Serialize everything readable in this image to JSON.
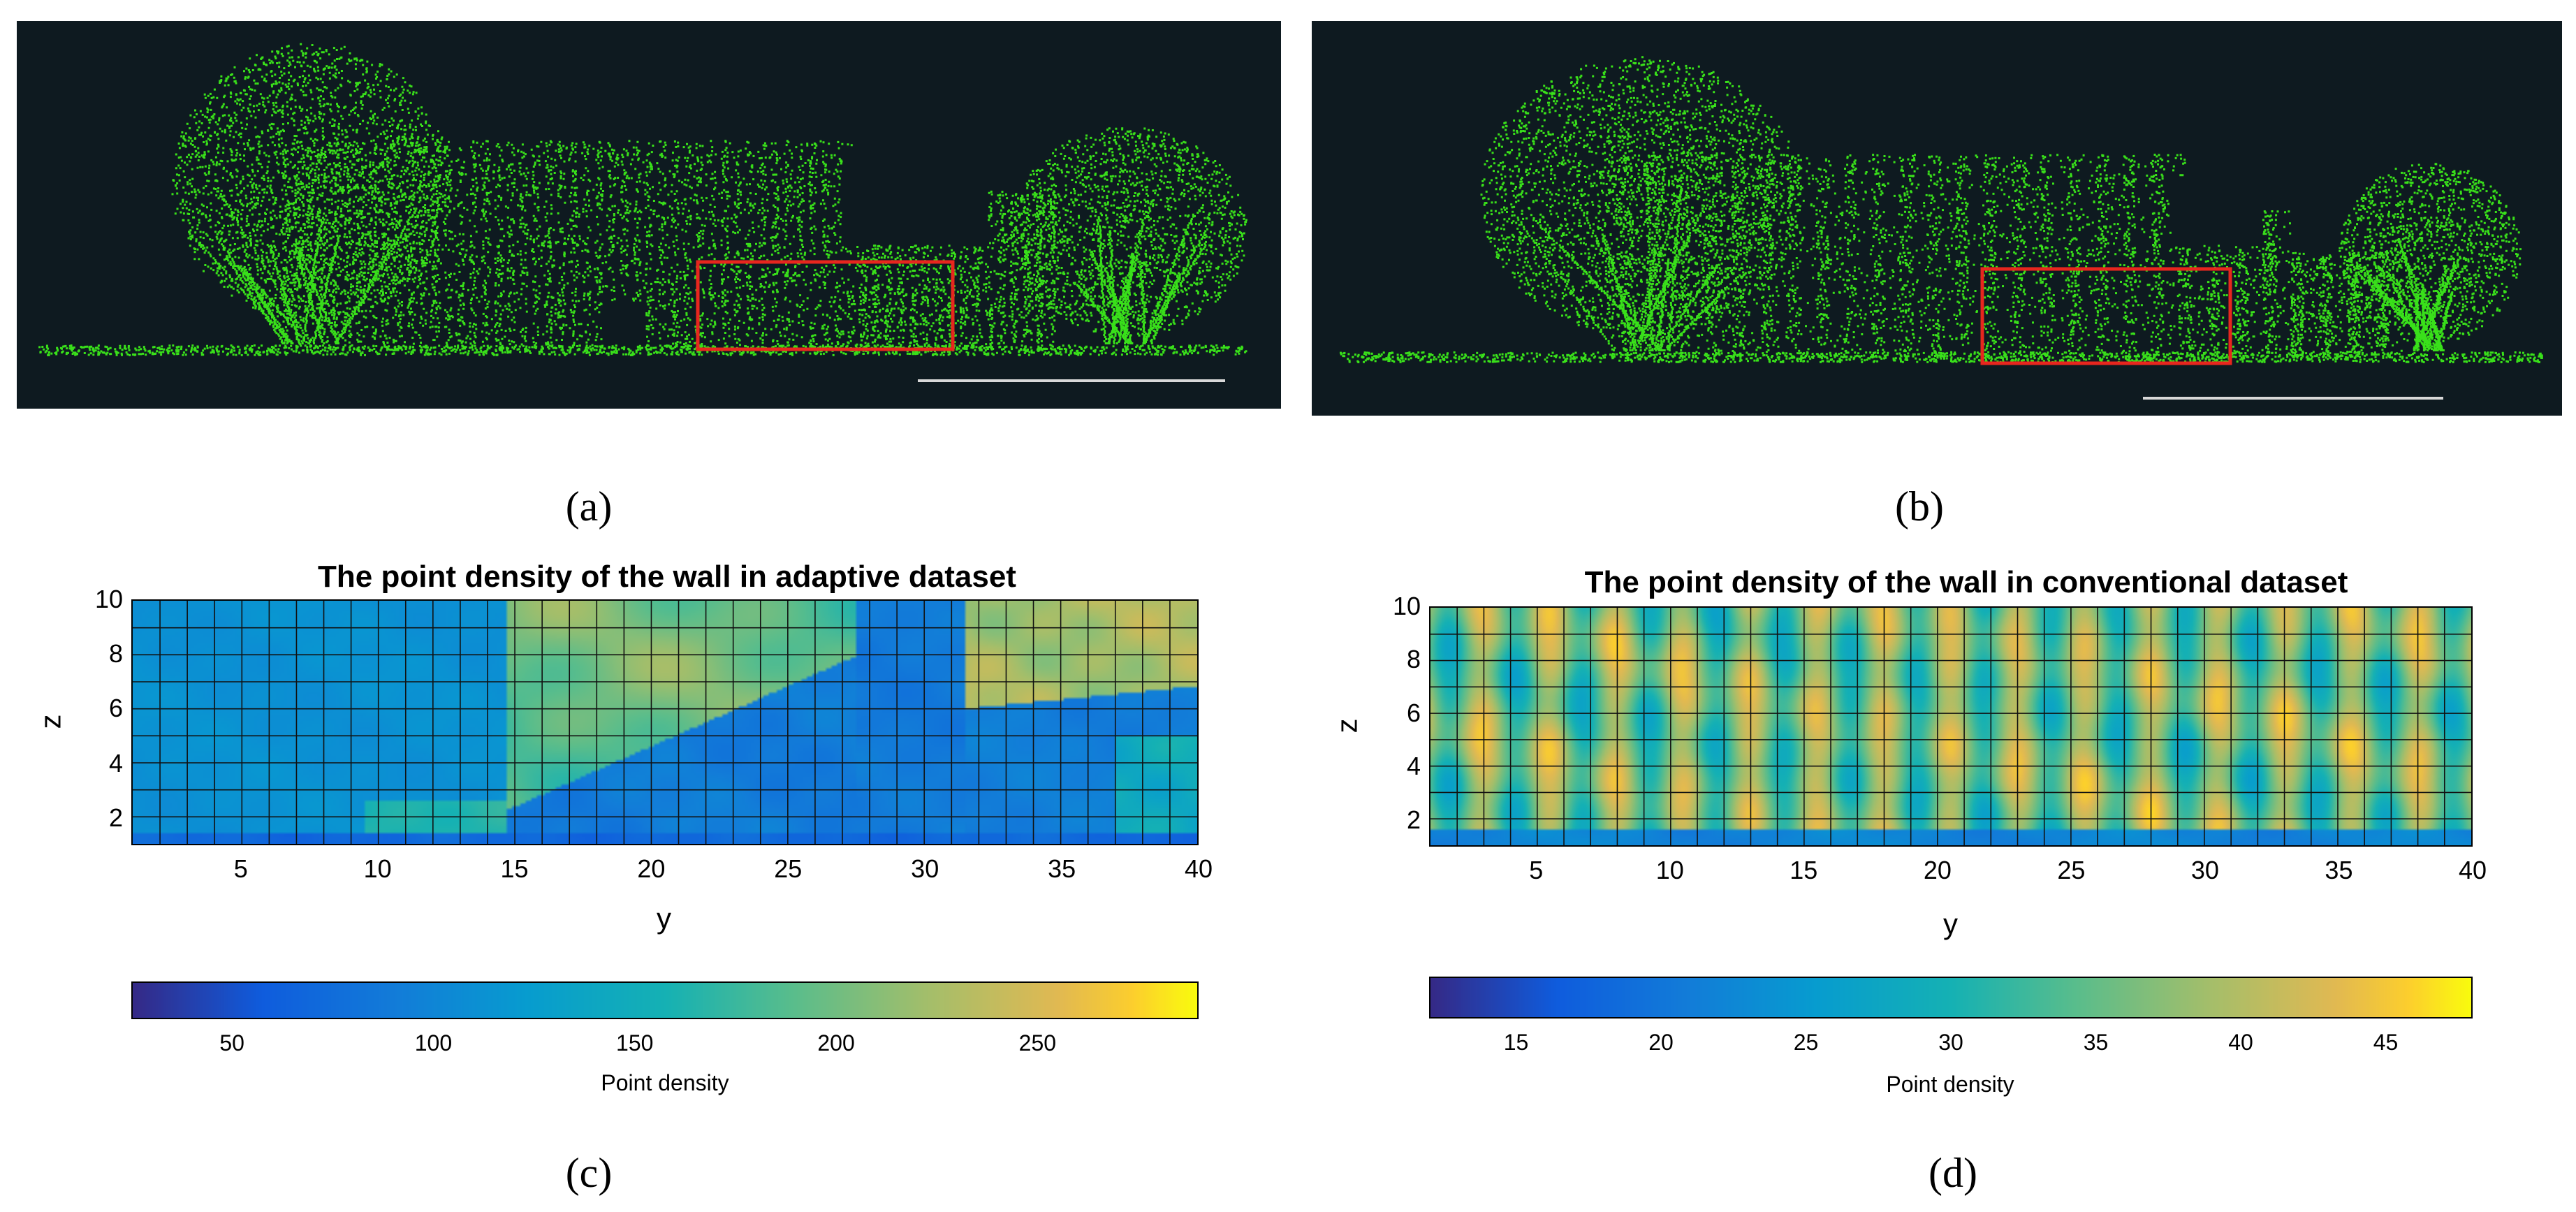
{
  "panels": {
    "a": {
      "caption": "(a)"
    },
    "b": {
      "caption": "(b)"
    },
    "c": {
      "caption": "(c)"
    },
    "d": {
      "caption": "(d)"
    }
  },
  "colors": {
    "cloud_bg": "#0e1a20",
    "points": "#39e01a",
    "roi_box": "#e8261e",
    "scalebar": "#d8d8d8"
  },
  "chart_data": [
    {
      "id": "c",
      "type": "heatmap",
      "title": "The point density of the wall in adaptive dataset",
      "xlabel": "y",
      "ylabel": "z",
      "xlim": [
        1,
        40
      ],
      "ylim": [
        1,
        10
      ],
      "xticks": [
        "5",
        "10",
        "15",
        "20",
        "25",
        "30",
        "35",
        "40"
      ],
      "yticks": [
        "2",
        "4",
        "6",
        "8",
        "10"
      ],
      "colorbar": {
        "label": "Point density",
        "range": [
          25,
          290
        ],
        "ticks": [
          "50",
          "100",
          "150",
          "200",
          "250"
        ]
      },
      "description_of_values": "left (y<15) ~100-120; right of y=15 upper region ~180-230; blue trough ~80-100 below diagonal from (10,1) to (30,10); upper-right (y>31,z>6) ~220-250"
    },
    {
      "id": "d",
      "type": "heatmap",
      "title": "The point density of the wall in conventional dataset",
      "xlabel": "y",
      "ylabel": "z",
      "xlim": [
        1,
        40
      ],
      "ylim": [
        1,
        10
      ],
      "xticks": [
        "5",
        "10",
        "15",
        "20",
        "25",
        "30",
        "35",
        "40"
      ],
      "yticks": [
        "2",
        "4",
        "6",
        "8",
        "10"
      ],
      "colorbar": {
        "label": "Point density",
        "range": [
          12,
          48
        ],
        "ticks": [
          "15",
          "20",
          "25",
          "30",
          "35",
          "40",
          "45"
        ]
      },
      "description_of_values": "vertical stripes alternating ~30 and ~42 with period ~2.5 in y; bottom row z<2 ~22"
    }
  ]
}
